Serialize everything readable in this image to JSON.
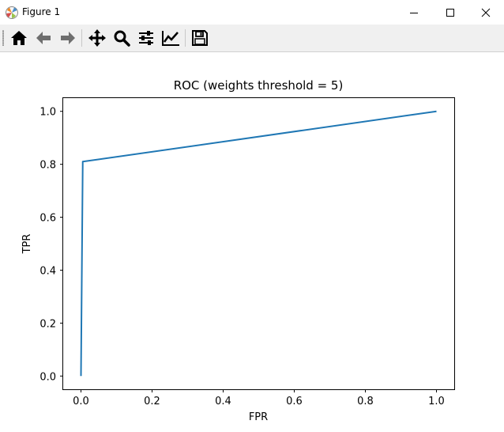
{
  "window": {
    "title": "Figure 1",
    "controls": [
      "minimize",
      "maximize",
      "close"
    ]
  },
  "toolbar": {
    "buttons": [
      {
        "name": "home-button",
        "icon": "home-icon"
      },
      {
        "name": "back-button",
        "icon": "arrow-left-icon"
      },
      {
        "name": "forward-button",
        "icon": "arrow-right-icon"
      },
      {
        "name": "pan-button",
        "icon": "move-icon"
      },
      {
        "name": "zoom-button",
        "icon": "magnifier-icon"
      },
      {
        "name": "configure-subplots-button",
        "icon": "sliders-icon"
      },
      {
        "name": "edit-axes-button",
        "icon": "line-chart-icon"
      },
      {
        "name": "save-button",
        "icon": "floppy-disk-icon"
      }
    ]
  },
  "chart_data": {
    "type": "line",
    "title": "ROC (weights threshold = 5)",
    "xlabel": "FPR",
    "ylabel": "TPR",
    "xlim": [
      -0.05,
      1.05
    ],
    "ylim": [
      -0.05,
      1.05
    ],
    "xticks": [
      "0.0",
      "0.2",
      "0.4",
      "0.6",
      "0.8",
      "1.0"
    ],
    "yticks": [
      "0.0",
      "0.2",
      "0.4",
      "0.6",
      "0.8",
      "1.0"
    ],
    "grid": false,
    "series": [
      {
        "color": "#1f77b4",
        "x": [
          0.0,
          0.005,
          1.0
        ],
        "y": [
          0.0,
          0.81,
          1.0
        ]
      }
    ]
  }
}
